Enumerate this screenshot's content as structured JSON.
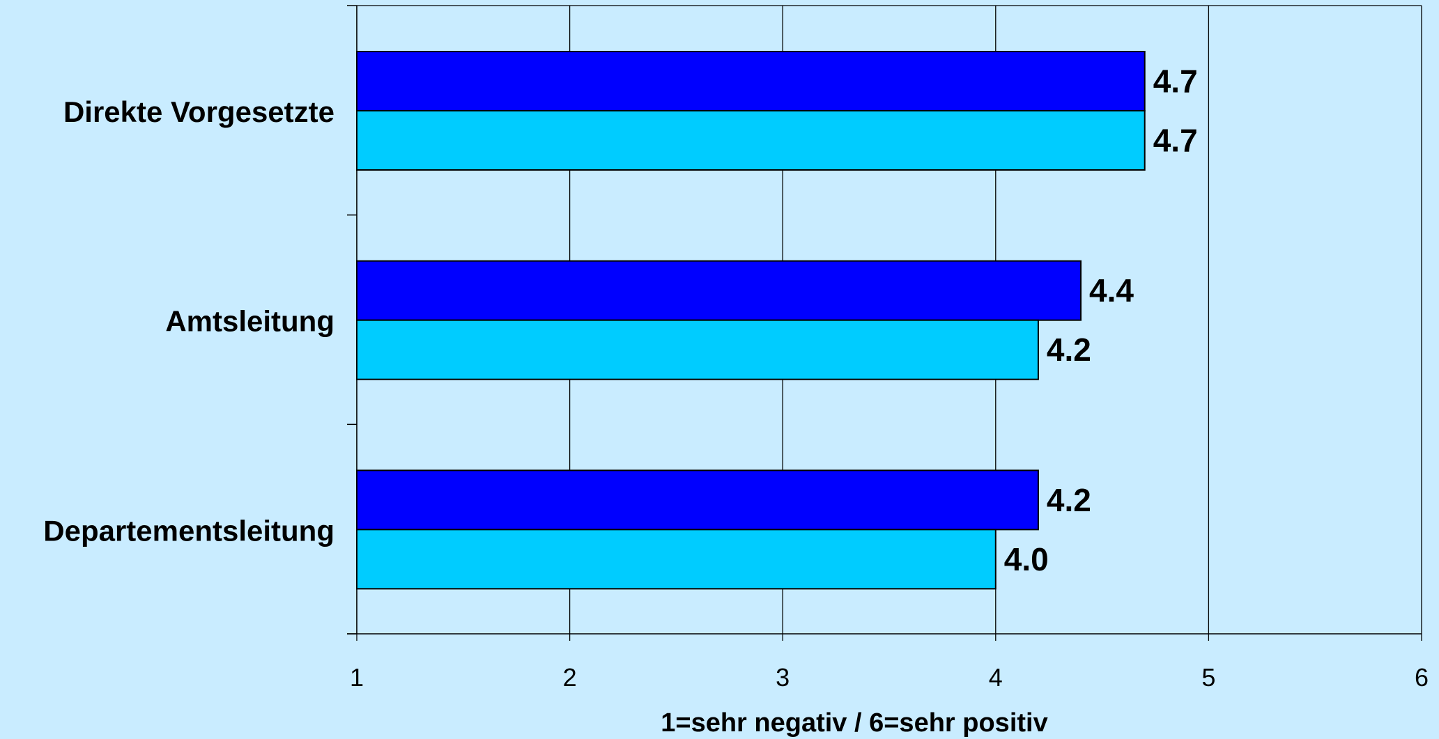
{
  "chart_data": {
    "type": "bar",
    "orientation": "horizontal",
    "categories": [
      "Direkte Vorgesetzte",
      "Amtsleitung",
      "Departementsleitung"
    ],
    "series": [
      {
        "color": "#0000ff",
        "values": [
          4.7,
          4.4,
          4.2
        ]
      },
      {
        "color": "#00ccff",
        "values": [
          4.7,
          4.2,
          4.0
        ]
      }
    ],
    "data_labels": [
      [
        "4.7",
        "4.4",
        "4.2"
      ],
      [
        "4.7",
        "4.2",
        "4.0"
      ]
    ],
    "xlim": [
      1,
      6
    ],
    "xticks": [
      "1",
      "2",
      "3",
      "4",
      "5",
      "6"
    ],
    "xlabel": "1=sehr negativ / 6=sehr positiv",
    "ylabel": "",
    "title": "",
    "grid": "vertical",
    "background": "#c9ecff"
  }
}
